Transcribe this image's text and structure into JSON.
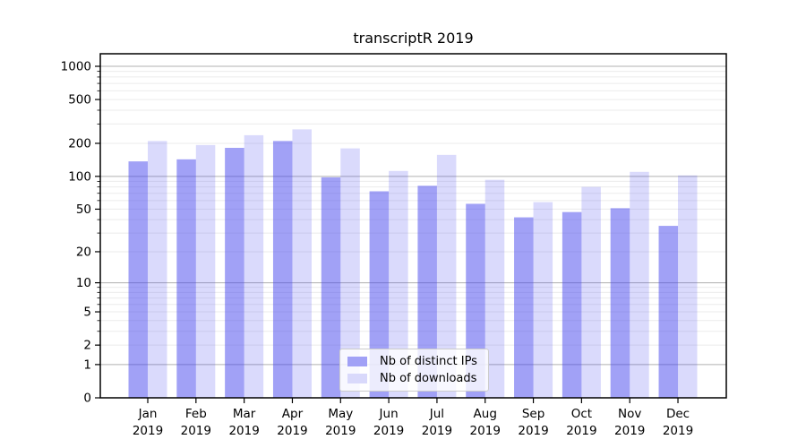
{
  "chart": {
    "title": "transcriptR 2019",
    "legend": [
      {
        "label": "Nb of distinct IPs"
      },
      {
        "label": "Nb of downloads"
      }
    ]
  },
  "colors": {
    "series1_fill": "rgba(68,68,238,0.5)",
    "series2_fill": "rgba(68,68,238,0.2)",
    "series1_flat": "#a1a1f6",
    "series2_flat": "#d9d9fb",
    "grid_major": "#b0b0b0",
    "grid_minor": "#ebebeb",
    "axis": "#000000"
  },
  "chart_data": {
    "type": "bar",
    "title": "transcriptR 2019",
    "categories": [
      "Jan 2019",
      "Feb 2019",
      "Mar 2019",
      "Apr 2019",
      "May 2019",
      "Jun 2019",
      "Jul 2019",
      "Aug 2019",
      "Sep 2019",
      "Oct 2019",
      "Nov 2019",
      "Dec 2019"
    ],
    "x_months": [
      "Jan",
      "Feb",
      "Mar",
      "Apr",
      "May",
      "Jun",
      "Jul",
      "Aug",
      "Sep",
      "Oct",
      "Nov",
      "Dec"
    ],
    "x_year": "2019",
    "series": [
      {
        "name": "Nb of distinct IPs",
        "values": [
          137,
          143,
          182,
          210,
          98,
          73,
          82,
          56,
          42,
          47,
          51,
          35
        ]
      },
      {
        "name": "Nb of downloads",
        "values": [
          210,
          193,
          237,
          268,
          180,
          112,
          157,
          93,
          58,
          80,
          110,
          102
        ]
      }
    ],
    "xlabel": "",
    "ylabel": "",
    "yscale": "log10(value+1)",
    "ytick_labels": [
      1000,
      500,
      200,
      100,
      50,
      20,
      10,
      5,
      2,
      1,
      0
    ],
    "ylim": [
      0,
      1300
    ],
    "grid": "both",
    "legend_position": "lower-center"
  }
}
